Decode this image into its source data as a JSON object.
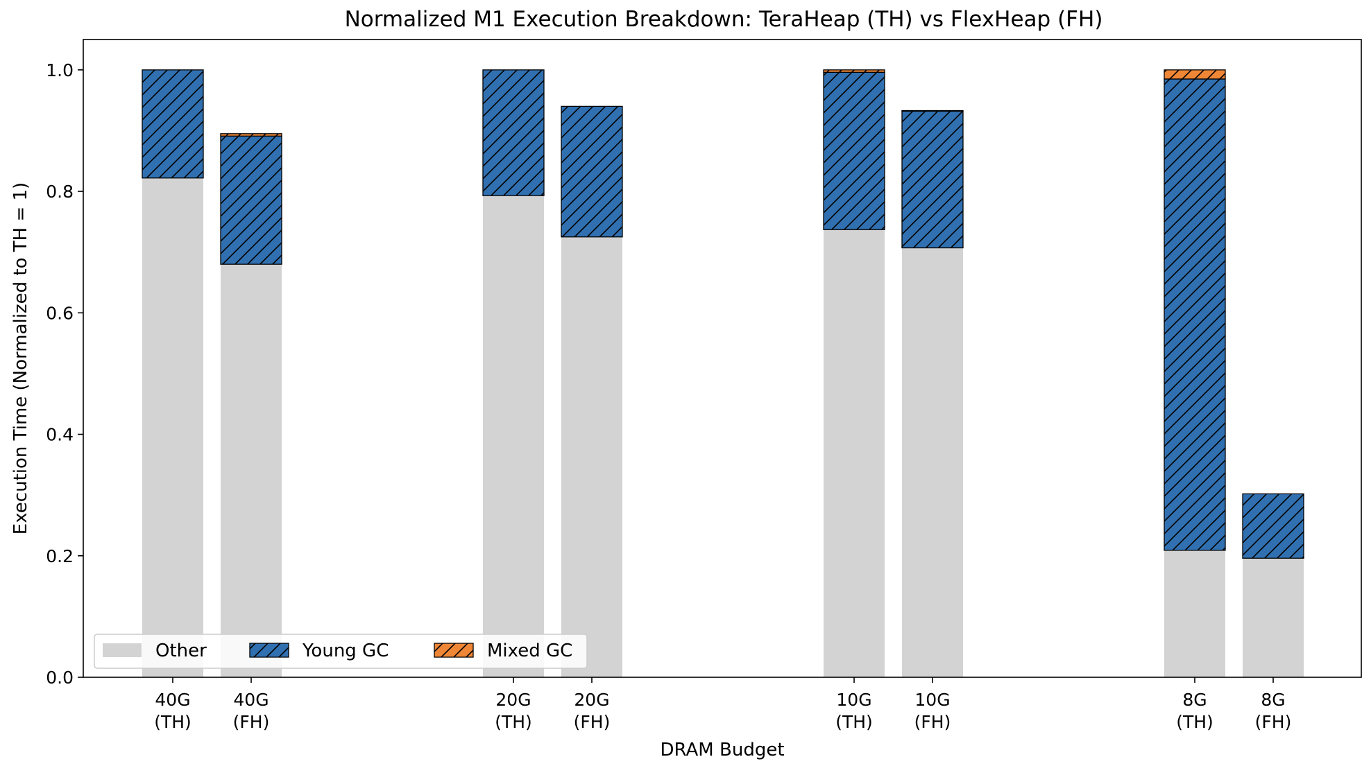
{
  "chart_data": {
    "type": "bar",
    "stacked": true,
    "title": "Normalized M1 Execution Breakdown: TeraHeap (TH) vs FlexHeap (FH)",
    "xlabel": "DRAM Budget",
    "ylabel": "Execution Time (Normalized to TH = 1)",
    "ylim": [
      0,
      1.05
    ],
    "yticks": [
      "0.0",
      "0.2",
      "0.4",
      "0.6",
      "0.8",
      "1.0"
    ],
    "grid": false,
    "legend_position": "lower-left",
    "groups": [
      {
        "budget": "40G",
        "bars": [
          {
            "line1": "40G",
            "line2": "(TH)"
          },
          {
            "line1": "40G",
            "line2": "(FH)"
          }
        ]
      },
      {
        "budget": "20G",
        "bars": [
          {
            "line1": "20G",
            "line2": "(TH)"
          },
          {
            "line1": "20G",
            "line2": "(FH)"
          }
        ]
      },
      {
        "budget": "10G",
        "bars": [
          {
            "line1": "10G",
            "line2": "(TH)"
          },
          {
            "line1": "10G",
            "line2": "(FH)"
          }
        ]
      },
      {
        "budget": "8G",
        "bars": [
          {
            "line1": "8G",
            "line2": "(TH)"
          },
          {
            "line1": "8G",
            "line2": "(FH)"
          }
        ]
      }
    ],
    "series": [
      {
        "name": "Other",
        "color": "#d3d3d3",
        "hatch": false,
        "values": [
          0.822,
          0.68,
          0.793,
          0.725,
          0.737,
          0.707,
          0.209,
          0.196
        ]
      },
      {
        "name": "Young GC",
        "color": "#3170b0",
        "hatch": true,
        "values": [
          0.178,
          0.211,
          0.207,
          0.215,
          0.259,
          0.225,
          0.776,
          0.106
        ]
      },
      {
        "name": "Mixed GC",
        "color": "#ee8636",
        "hatch": true,
        "values": [
          0.0,
          0.004,
          0.0,
          0.0,
          0.004,
          0.001,
          0.015,
          0.0
        ]
      }
    ]
  }
}
